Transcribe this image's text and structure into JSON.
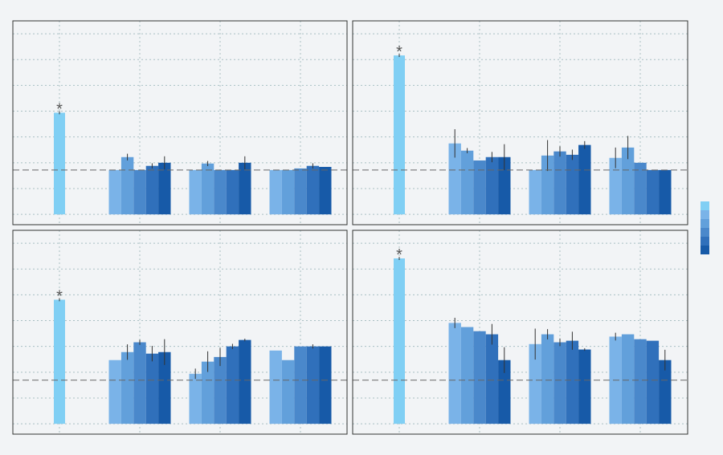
{
  "chart_data": [
    {
      "type": "bar",
      "categories": [
        null,
        null,
        null,
        null
      ],
      "ylim": [
        -0.4,
        7.5
      ],
      "yticks": [
        0,
        1,
        2,
        3,
        4,
        5,
        6,
        7
      ],
      "grid": true,
      "refline": 1.72,
      "annotation": "*",
      "legend": "right",
      "series": [
        {
          "color": "#80cff4",
          "values": [
            3.94,
            null,
            null,
            null
          ],
          "errors": [
            0.06,
            null,
            null,
            null
          ]
        },
        {
          "color": "#7ab3e8",
          "values": [
            null,
            1.72,
            1.72,
            1.72
          ],
          "errors": [
            null,
            null,
            null,
            null
          ]
        },
        {
          "color": "#62a0db",
          "values": [
            null,
            2.22,
            1.97,
            1.72
          ],
          "errors": [
            null,
            0.13,
            0.1,
            null
          ]
        },
        {
          "color": "#4a88cb",
          "values": [
            null,
            1.72,
            1.72,
            1.78
          ],
          "errors": [
            null,
            null,
            null,
            null
          ]
        },
        {
          "color": "#3070bb",
          "values": [
            null,
            1.88,
            1.72,
            1.88
          ],
          "errors": [
            null,
            0.1,
            null,
            0.1
          ]
        },
        {
          "color": "#175aa8",
          "values": [
            null,
            2.0,
            2.0,
            1.84
          ],
          "errors": [
            null,
            0.25,
            0.25,
            null
          ]
        }
      ]
    },
    {
      "type": "bar",
      "categories": [
        null,
        null,
        null,
        null
      ],
      "ylim": [
        -0.4,
        7.5
      ],
      "yticks": [
        0,
        1,
        2,
        3,
        4,
        5,
        6,
        7
      ],
      "grid": true,
      "refline": 1.72,
      "annotation": "*",
      "series": [
        {
          "color": "#80cff4",
          "values": [
            6.16,
            null,
            null,
            null
          ],
          "errors": [
            0.06,
            null,
            null,
            null
          ]
        },
        {
          "color": "#7ab3e8",
          "values": [
            null,
            2.75,
            1.72,
            2.19
          ],
          "errors": [
            null,
            0.55,
            null,
            0.4
          ]
        },
        {
          "color": "#62a0db",
          "values": [
            null,
            2.47,
            2.28,
            2.59
          ],
          "errors": [
            null,
            0.1,
            0.6,
            0.45
          ]
        },
        {
          "color": "#4a88cb",
          "values": [
            null,
            2.09,
            2.44,
            2.0
          ],
          "errors": [
            null,
            null,
            0.2,
            null
          ]
        },
        {
          "color": "#3070bb",
          "values": [
            null,
            2.22,
            2.31,
            1.72
          ],
          "errors": [
            null,
            0.2,
            0.2,
            null
          ]
        },
        {
          "color": "#175aa8",
          "values": [
            null,
            2.22,
            2.69,
            1.72
          ],
          "errors": [
            null,
            0.5,
            0.15,
            null
          ]
        }
      ]
    },
    {
      "type": "bar",
      "categories": [
        null,
        null,
        null,
        null
      ],
      "ylim": [
        -0.4,
        7.5
      ],
      "yticks": [
        0,
        1,
        2,
        3,
        4,
        5,
        6,
        7
      ],
      "grid": true,
      "refline": 1.69,
      "annotation": "*",
      "series": [
        {
          "color": "#80cff4",
          "values": [
            4.81,
            null,
            null,
            null
          ],
          "errors": [
            0.06,
            null,
            null,
            null
          ]
        },
        {
          "color": "#7ab3e8",
          "values": [
            null,
            2.47,
            1.94,
            2.84
          ],
          "errors": [
            null,
            null,
            0.2,
            null
          ]
        },
        {
          "color": "#62a0db",
          "values": [
            null,
            2.78,
            2.41,
            2.47
          ],
          "errors": [
            null,
            0.3,
            0.4,
            null
          ]
        },
        {
          "color": "#4a88cb",
          "values": [
            null,
            3.16,
            2.59,
            3.0
          ],
          "errors": [
            null,
            0.1,
            0.35,
            null
          ]
        },
        {
          "color": "#3070bb",
          "values": [
            null,
            2.72,
            3.0,
            3.0
          ],
          "errors": [
            null,
            0.3,
            0.1,
            0.08
          ]
        },
        {
          "color": "#175aa8",
          "values": [
            null,
            2.78,
            3.25,
            3.0
          ],
          "errors": [
            null,
            0.5,
            0.05,
            null
          ]
        }
      ]
    },
    {
      "type": "bar",
      "categories": [
        null,
        null,
        null,
        null
      ],
      "ylim": [
        -0.4,
        7.5
      ],
      "yticks": [
        0,
        1,
        2,
        3,
        4,
        5,
        6,
        7
      ],
      "grid": true,
      "refline": 1.69,
      "annotation": "*",
      "series": [
        {
          "color": "#80cff4",
          "values": [
            6.41,
            null,
            null,
            null
          ],
          "errors": [
            0.06,
            null,
            null,
            null
          ]
        },
        {
          "color": "#7ab3e8",
          "values": [
            null,
            3.91,
            3.09,
            3.38
          ],
          "errors": [
            null,
            0.2,
            0.6,
            0.15
          ]
        },
        {
          "color": "#62a0db",
          "values": [
            null,
            3.75,
            3.47,
            3.47
          ],
          "errors": [
            null,
            null,
            0.2,
            null
          ]
        },
        {
          "color": "#4a88cb",
          "values": [
            null,
            3.59,
            3.16,
            3.28
          ],
          "errors": [
            null,
            null,
            0.15,
            null
          ]
        },
        {
          "color": "#3070bb",
          "values": [
            null,
            3.47,
            3.22,
            3.22
          ],
          "errors": [
            null,
            0.4,
            0.35,
            null
          ]
        },
        {
          "color": "#175aa8",
          "values": [
            null,
            2.47,
            2.88,
            2.47
          ],
          "errors": [
            null,
            0.5,
            0.05,
            0.4
          ]
        }
      ]
    }
  ]
}
